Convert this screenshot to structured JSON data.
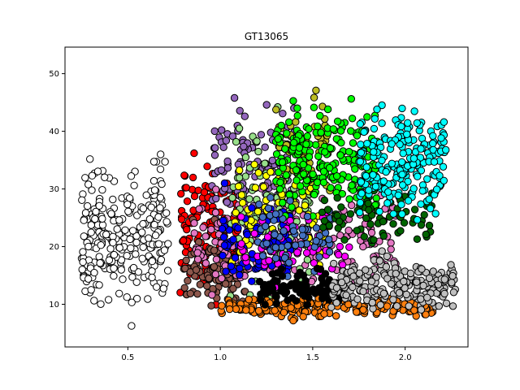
{
  "chart_data": {
    "type": "scatter",
    "title": "GT13065",
    "xlabel": "",
    "ylabel": "",
    "xlim": [
      0.16,
      2.34
    ],
    "ylim": [
      2.6,
      54.6
    ],
    "x_ticks": [
      0.5,
      1.0,
      1.5,
      2.0
    ],
    "x_tick_labels": [
      "0.5",
      "1.0",
      "1.5",
      "2.0"
    ],
    "y_ticks": [
      10,
      20,
      30,
      40,
      50
    ],
    "y_tick_labels": [
      "10",
      "20",
      "30",
      "40",
      "50"
    ],
    "grid": false,
    "legend": "none",
    "marker_edge_color": "#000000",
    "series": [
      {
        "color": "#ffffff",
        "x_range": [
          0.25,
          0.72
        ],
        "y_range": [
          5,
          38
        ],
        "n": 260
      },
      {
        "color": "#ff0000",
        "x_range": [
          0.78,
          1.1
        ],
        "y_range": [
          7,
          41
        ],
        "n": 130
      },
      {
        "color": "#9467bd",
        "x_range": [
          0.95,
          1.4
        ],
        "y_range": [
          15,
          52
        ],
        "n": 120
      },
      {
        "color": "#8c564b",
        "x_range": [
          0.8,
          1.15
        ],
        "y_range": [
          7,
          25
        ],
        "n": 100
      },
      {
        "color": "#e377c2",
        "x_range": [
          0.85,
          1.95
        ],
        "y_range": [
          8,
          34
        ],
        "n": 200
      },
      {
        "color": "#98df8a",
        "x_range": [
          1.05,
          1.5
        ],
        "y_range": [
          6,
          48
        ],
        "n": 110
      },
      {
        "color": "#ffff00",
        "x_range": [
          1.05,
          1.6
        ],
        "y_range": [
          12,
          38
        ],
        "n": 70
      },
      {
        "color": "#0000ff",
        "x_range": [
          1.0,
          1.4
        ],
        "y_range": [
          12,
          32
        ],
        "n": 80
      },
      {
        "color": "#ff00ff",
        "x_range": [
          1.1,
          1.7
        ],
        "y_range": [
          11,
          30
        ],
        "n": 60
      },
      {
        "color": "#bcbd22",
        "x_range": [
          1.3,
          1.6
        ],
        "y_range": [
          25,
          50
        ],
        "n": 60
      },
      {
        "color": "#00ff00",
        "x_range": [
          1.3,
          1.85
        ],
        "y_range": [
          22,
          47
        ],
        "n": 220
      },
      {
        "color": "#4472c4",
        "x_range": [
          1.2,
          1.6
        ],
        "y_range": [
          14,
          30
        ],
        "n": 60
      },
      {
        "color": "#006400",
        "x_range": [
          1.55,
          2.15
        ],
        "y_range": [
          19,
          32
        ],
        "n": 80
      },
      {
        "color": "#00ffff",
        "x_range": [
          1.75,
          2.22
        ],
        "y_range": [
          22,
          47
        ],
        "n": 220
      },
      {
        "color": "#ff7f0e",
        "x_range": [
          1.0,
          2.15
        ],
        "y_range": [
          7,
          12
        ],
        "n": 200
      },
      {
        "color": "#000000",
        "x_range": [
          1.2,
          1.65
        ],
        "y_range": [
          9,
          17
        ],
        "n": 80
      },
      {
        "color": "#c0c0c0",
        "x_range": [
          1.6,
          2.28
        ],
        "y_range": [
          7,
          20
        ],
        "n": 200
      }
    ]
  }
}
